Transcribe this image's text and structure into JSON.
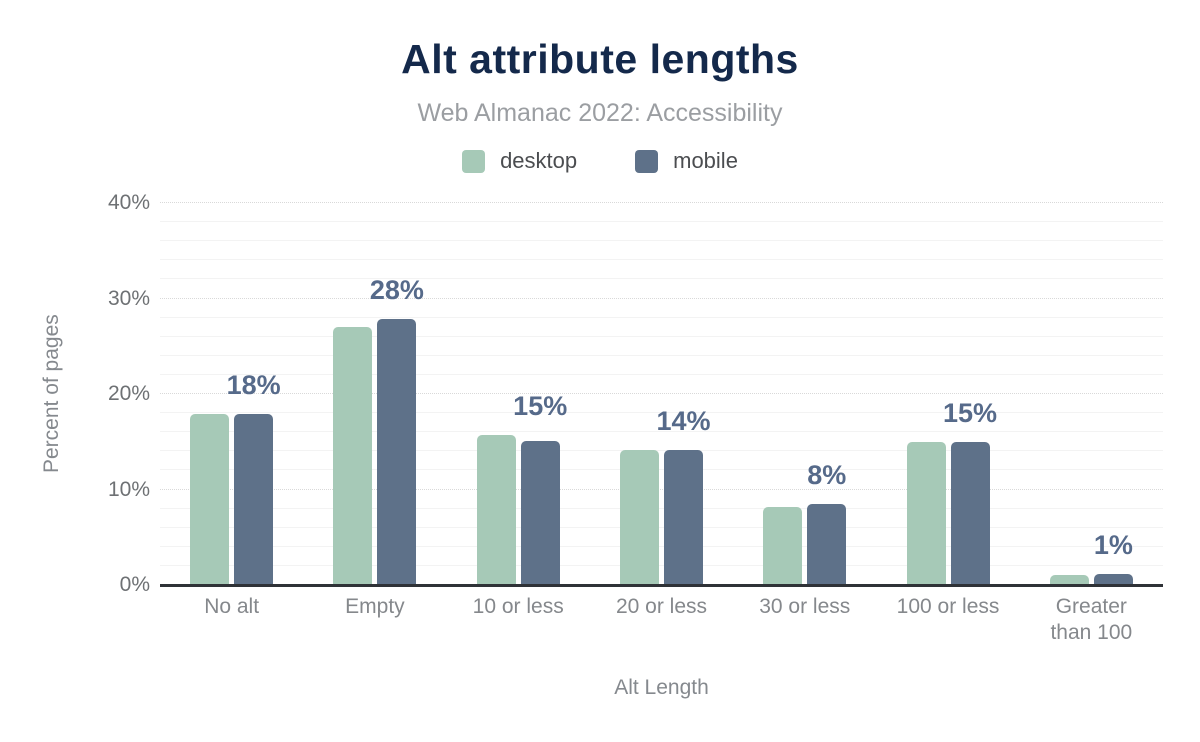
{
  "chart_data": {
    "type": "bar",
    "title": "Alt attribute lengths",
    "subtitle": "Web Almanac 2022: Accessibility",
    "xlabel": "Alt Length",
    "ylabel": "Percent of pages",
    "categories": [
      "No alt",
      "Empty",
      "10 or less",
      "20 or less",
      "30 or less",
      "100 or less",
      "Greater than 100"
    ],
    "series": [
      {
        "name": "desktop",
        "color": "#a6c9b7",
        "values": [
          17.9,
          27.0,
          15.7,
          14.1,
          8.2,
          15.0,
          1.0
        ]
      },
      {
        "name": "mobile",
        "color": "#5e7189",
        "values": [
          17.9,
          27.9,
          15.1,
          14.1,
          8.5,
          15.0,
          1.1
        ]
      }
    ],
    "bar_labels": [
      "18%",
      "28%",
      "15%",
      "14%",
      "8%",
      "15%",
      "1%"
    ],
    "ylim": [
      0,
      40
    ],
    "yticks": [
      0,
      10,
      20,
      30,
      40
    ],
    "ytick_suffix": "%",
    "grid": {
      "minor_every": 2,
      "major_every": 10
    },
    "legend_position": "top"
  },
  "colors": {
    "title": "#14294b",
    "subtitle": "#9b9ea2",
    "data_label": "#566a8a",
    "axis_text": "#6e7174",
    "baseline": "#2f3237"
  }
}
